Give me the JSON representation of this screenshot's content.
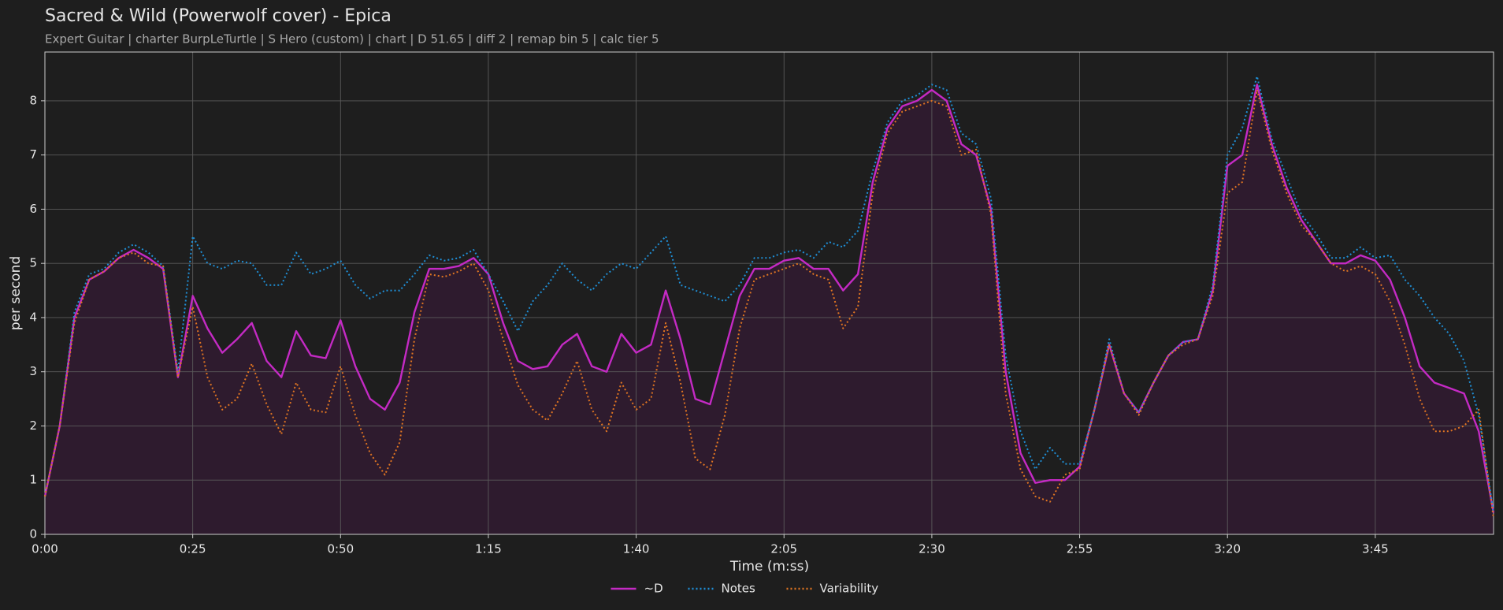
{
  "chart_data": {
    "type": "line",
    "title": "Sacred & Wild (Powerwolf cover) - Epica",
    "subtitle": "Expert Guitar  |  charter BurpLeTurtle  |  S Hero (custom)  |  chart  |  D 51.65  |  diff 2  |  remap bin 5  |  calc tier 5",
    "xlabel": "Time (m:ss)",
    "ylabel": "per second",
    "xlim": [
      0,
      245
    ],
    "ylim": [
      0,
      8.9
    ],
    "xticks": [
      {
        "value": 0,
        "label": "0:00"
      },
      {
        "value": 25,
        "label": "0:25"
      },
      {
        "value": 50,
        "label": "0:50"
      },
      {
        "value": 75,
        "label": "1:15"
      },
      {
        "value": 100,
        "label": "1:40"
      },
      {
        "value": 125,
        "label": "2:05"
      },
      {
        "value": 150,
        "label": "2:30"
      },
      {
        "value": 175,
        "label": "2:55"
      },
      {
        "value": 200,
        "label": "3:20"
      },
      {
        "value": 225,
        "label": "3:45"
      }
    ],
    "yticks": [
      0,
      1,
      2,
      3,
      4,
      5,
      6,
      7,
      8
    ],
    "grid": true,
    "legend": "bottom",
    "x": [
      0,
      2.5,
      5,
      7.5,
      10,
      12.5,
      15,
      17.5,
      20,
      22.5,
      25,
      27.5,
      30,
      32.5,
      35,
      37.5,
      40,
      42.5,
      45,
      47.5,
      50,
      52.5,
      55,
      57.5,
      60,
      62.5,
      65,
      67.5,
      70,
      72.5,
      75,
      77.5,
      80,
      82.5,
      85,
      87.5,
      90,
      92.5,
      95,
      97.5,
      100,
      102.5,
      105,
      107.5,
      110,
      112.5,
      115,
      117.5,
      120,
      122.5,
      125,
      127.5,
      130,
      132.5,
      135,
      137.5,
      140,
      142.5,
      145,
      147.5,
      150,
      152.5,
      155,
      157.5,
      160,
      162.5,
      165,
      167.5,
      170,
      172.5,
      175,
      177.5,
      180,
      182.5,
      185,
      187.5,
      190,
      192.5,
      195,
      197.5,
      200,
      202.5,
      205,
      207.5,
      210,
      212.5,
      215,
      217.5,
      220,
      222.5,
      225,
      227.5,
      230,
      232.5,
      235,
      237.5,
      240,
      242.5,
      245
    ],
    "series": [
      {
        "name": "~D",
        "color": "#c42ac4",
        "linestyle": "solid",
        "fill": "#2e1b2e",
        "values": [
          0.7,
          2.0,
          4.0,
          4.7,
          4.85,
          5.1,
          5.25,
          5.1,
          4.9,
          2.9,
          4.4,
          3.8,
          3.35,
          3.6,
          3.9,
          3.2,
          2.9,
          3.75,
          3.3,
          3.25,
          3.95,
          3.1,
          2.5,
          2.3,
          2.8,
          4.1,
          4.9,
          4.9,
          4.95,
          5.1,
          4.8,
          3.9,
          3.2,
          3.05,
          3.1,
          3.5,
          3.7,
          3.1,
          3.0,
          3.7,
          3.35,
          3.5,
          4.5,
          3.6,
          2.5,
          2.4,
          3.4,
          4.4,
          4.9,
          4.9,
          5.05,
          5.1,
          4.9,
          4.9,
          4.5,
          4.8,
          6.5,
          7.5,
          7.9,
          8.0,
          8.2,
          8.0,
          7.2,
          7.0,
          6.0,
          3.0,
          1.5,
          0.95,
          1.0,
          1.0,
          1.25,
          2.3,
          3.5,
          2.6,
          2.25,
          2.8,
          3.3,
          3.55,
          3.6,
          4.5,
          6.8,
          7.0,
          8.3,
          7.2,
          6.4,
          5.8,
          5.4,
          5.0,
          5.0,
          5.15,
          5.05,
          4.7,
          4.0,
          3.1,
          2.8,
          2.7,
          2.6,
          1.9,
          0.4
        ]
      },
      {
        "name": "Notes",
        "color": "#1f8fd6",
        "linestyle": "dotted",
        "values": [
          0.7,
          2.0,
          4.1,
          4.8,
          4.9,
          5.2,
          5.35,
          5.2,
          4.95,
          3.0,
          5.5,
          5.0,
          4.9,
          5.05,
          5.0,
          4.6,
          4.6,
          5.2,
          4.8,
          4.9,
          5.05,
          4.6,
          4.35,
          4.5,
          4.5,
          4.8,
          5.15,
          5.05,
          5.1,
          5.25,
          4.8,
          4.3,
          3.75,
          4.3,
          4.6,
          5.0,
          4.7,
          4.5,
          4.8,
          5.0,
          4.9,
          5.2,
          5.5,
          4.6,
          4.5,
          4.4,
          4.3,
          4.6,
          5.1,
          5.1,
          5.2,
          5.25,
          5.1,
          5.4,
          5.3,
          5.6,
          6.7,
          7.6,
          8.0,
          8.1,
          8.3,
          8.2,
          7.4,
          7.2,
          6.2,
          3.3,
          1.9,
          1.2,
          1.6,
          1.3,
          1.3,
          2.3,
          3.6,
          2.6,
          2.25,
          2.8,
          3.3,
          3.55,
          3.6,
          4.6,
          7.0,
          7.5,
          8.45,
          7.3,
          6.6,
          5.9,
          5.55,
          5.1,
          5.1,
          5.3,
          5.1,
          5.15,
          4.7,
          4.4,
          4.0,
          3.7,
          3.2,
          2.2,
          0.4
        ]
      },
      {
        "name": "Variability",
        "color": "#e07522",
        "linestyle": "dotted",
        "values": [
          0.7,
          2.0,
          3.9,
          4.7,
          4.85,
          5.1,
          5.2,
          5.0,
          4.95,
          2.9,
          4.2,
          2.9,
          2.3,
          2.5,
          3.15,
          2.4,
          1.85,
          2.8,
          2.3,
          2.25,
          3.1,
          2.2,
          1.5,
          1.1,
          1.7,
          3.6,
          4.8,
          4.75,
          4.85,
          5.0,
          4.5,
          3.6,
          2.75,
          2.3,
          2.1,
          2.6,
          3.2,
          2.3,
          1.9,
          2.8,
          2.3,
          2.5,
          3.9,
          2.8,
          1.4,
          1.2,
          2.2,
          3.8,
          4.7,
          4.8,
          4.9,
          5.0,
          4.8,
          4.7,
          3.8,
          4.2,
          6.3,
          7.4,
          7.8,
          7.9,
          8.0,
          7.9,
          7.0,
          7.1,
          5.9,
          2.6,
          1.2,
          0.7,
          0.6,
          1.1,
          1.2,
          2.3,
          3.5,
          2.6,
          2.2,
          2.8,
          3.3,
          3.5,
          3.6,
          4.4,
          6.3,
          6.5,
          8.2,
          7.1,
          6.3,
          5.7,
          5.4,
          5.0,
          4.85,
          4.95,
          4.8,
          4.3,
          3.5,
          2.5,
          1.9,
          1.9,
          2.0,
          2.3,
          0.3
        ]
      }
    ]
  }
}
